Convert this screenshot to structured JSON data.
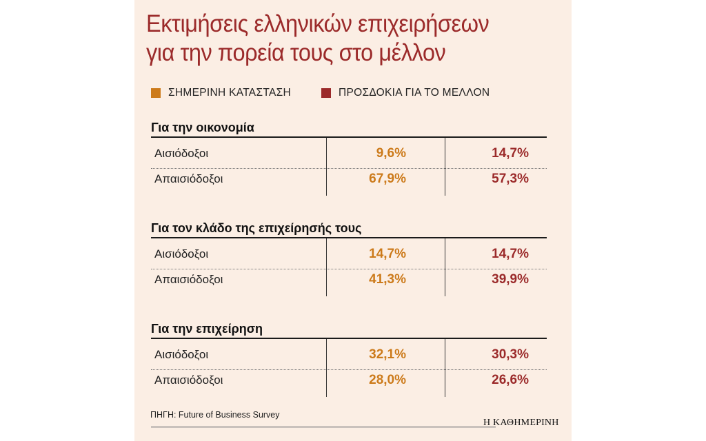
{
  "colors": {
    "panel_bg": "#fbeee4",
    "title": "#9b2a2a",
    "current": "#cc7a1a",
    "future": "#9b2a2a"
  },
  "chart_data": {
    "type": "table",
    "title_lines": [
      "Εκτιμήσεις ελληνικών επιχειρήσεων",
      "για την πορεία τους στο μέλλον"
    ],
    "legend": [
      {
        "label": "ΣΗΜΕΡΙΝΗ ΚΑΤΑΣΤΑΣΗ",
        "color": "#cc7a1a"
      },
      {
        "label": "ΠΡΟΣΔΟΚΙΑ ΓΙΑ ΤΟ ΜΕΛΛΟΝ",
        "color": "#9b2a2a"
      }
    ],
    "sections": [
      {
        "title": "Για την οικονομία",
        "rows": [
          {
            "label": "Αισιόδοξοι",
            "current": "9,6%",
            "future": "14,7%"
          },
          {
            "label": "Απαισιόδοξοι",
            "current": "67,9%",
            "future": "57,3%"
          }
        ]
      },
      {
        "title": "Για τον κλάδο της επιχείρησής τους",
        "rows": [
          {
            "label": "Αισιόδοξοι",
            "current": "14,7%",
            "future": "14,7%"
          },
          {
            "label": "Απαισιόδοξοι",
            "current": "41,3%",
            "future": "39,9%"
          }
        ]
      },
      {
        "title": "Για την επιχείρηση",
        "rows": [
          {
            "label": "Αισιόδοξοι",
            "current": "32,1%",
            "future": "30,3%"
          },
          {
            "label": "Απαισιόδοξοι",
            "current": "28,0%",
            "future": "26,6%"
          }
        ]
      }
    ],
    "source": "ΠΗΓΗ: Future of Business Survey",
    "publisher": "Η ΚΑΘΗΜΕΡΙΝΗ"
  }
}
